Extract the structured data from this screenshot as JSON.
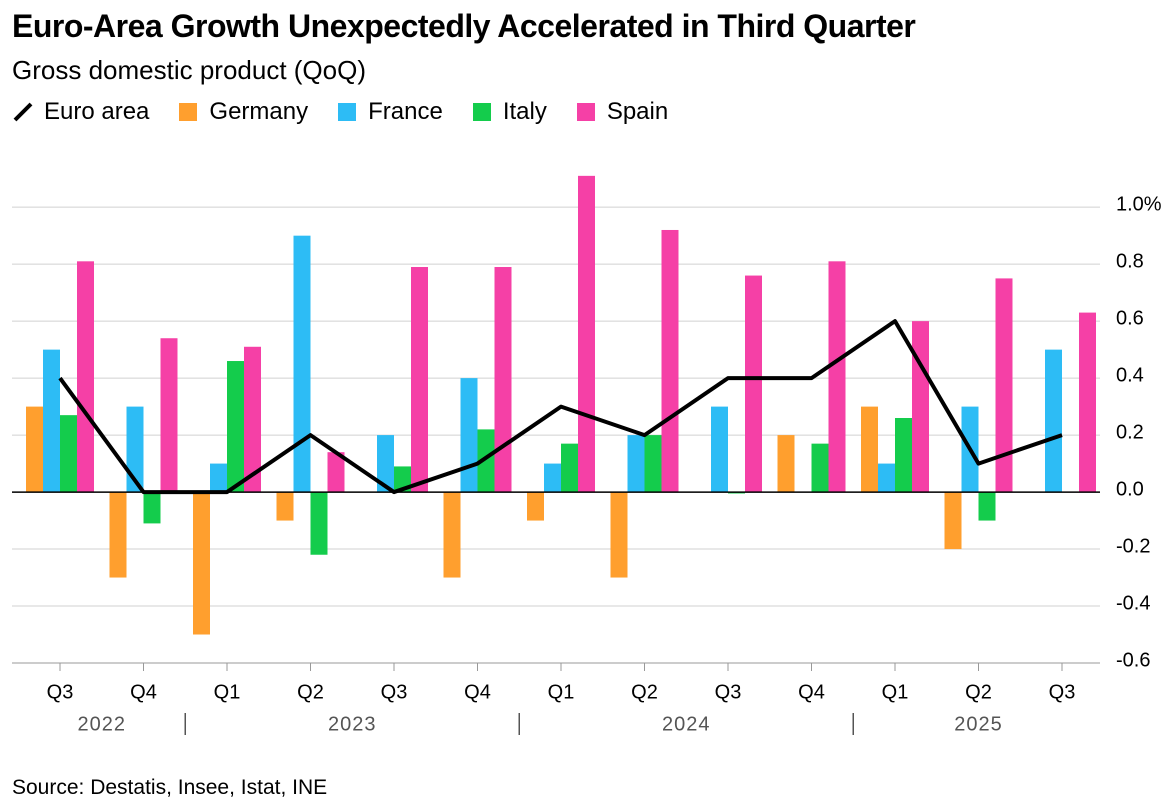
{
  "chart_data": {
    "type": "bar",
    "title": "Euro-Area Growth Unexpectedly Accelerated in Third Quarter",
    "subtitle": "Gross domestic product (QoQ)",
    "source": "Source: Destatis, Insee, Istat, INE",
    "categories": [
      "Q3",
      "Q4",
      "Q1",
      "Q2",
      "Q3",
      "Q4",
      "Q1",
      "Q2",
      "Q3",
      "Q4",
      "Q1",
      "Q2",
      "Q3"
    ],
    "years": [
      "2022",
      "2023",
      "2024",
      "2025"
    ],
    "series": [
      {
        "name": "Euro area",
        "type": "line",
        "color": "#000000",
        "values": [
          0.4,
          0.0,
          0.0,
          0.2,
          0.0,
          0.1,
          0.3,
          0.2,
          0.4,
          0.4,
          0.6,
          0.1,
          0.2
        ]
      },
      {
        "name": "Germany",
        "type": "bar",
        "color": "#ff9f2e",
        "values": [
          0.3,
          -0.3,
          -0.5,
          -0.1,
          0.0,
          -0.3,
          -0.1,
          -0.3,
          0.0,
          0.2,
          0.3,
          -0.2,
          0.0
        ]
      },
      {
        "name": "France",
        "type": "bar",
        "color": "#2dbcf5",
        "values": [
          0.5,
          0.3,
          0.1,
          0.9,
          0.2,
          0.4,
          0.1,
          0.2,
          0.3,
          0.0,
          0.1,
          0.3,
          0.5
        ]
      },
      {
        "name": "Italy",
        "type": "bar",
        "color": "#14cc4c",
        "values": [
          0.27,
          -0.11,
          0.46,
          -0.22,
          0.09,
          0.22,
          0.17,
          0.2,
          -0.005,
          0.17,
          0.26,
          -0.1,
          0.0
        ]
      },
      {
        "name": "Spain",
        "type": "bar",
        "color": "#f540a6",
        "values": [
          0.81,
          0.54,
          0.51,
          0.14,
          0.79,
          0.79,
          1.11,
          0.92,
          0.76,
          0.81,
          0.6,
          0.75,
          0.63
        ]
      }
    ],
    "ylim": [
      -0.6,
      1.12
    ],
    "yticks": [
      {
        "value": 1.0,
        "label": "1.0%"
      },
      0.8,
      0.6,
      0.4,
      0.2,
      {
        "value": 0,
        "label": "0.0"
      },
      -0.2,
      -0.4,
      -0.6
    ],
    "grid": true
  }
}
